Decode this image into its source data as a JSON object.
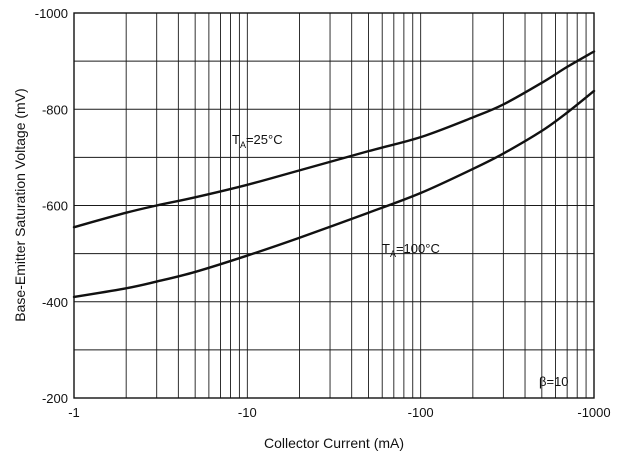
{
  "chart_data": {
    "type": "line",
    "xlabel": "Collector Current (mA)",
    "ylabel": "Base-Emitter Saturation Voltage (mV)",
    "x_scale": "log",
    "xlim": [
      1,
      1000
    ],
    "ylim": [
      -200,
      -1000
    ],
    "x_ticks": [
      1,
      10,
      100,
      1000
    ],
    "x_tick_labels": [
      "-1",
      "-10",
      "-100",
      "-1000"
    ],
    "y_ticks": [
      -200,
      -400,
      -600,
      -800,
      -1000
    ],
    "y_tick_labels": [
      "-200",
      "-400",
      "-600",
      "-800",
      "-1000"
    ],
    "grid": true,
    "series": [
      {
        "name": "T_A=25°C",
        "label_main": "T",
        "label_sub": "A",
        "label_rest": "=25°C",
        "x": [
          1,
          2,
          3,
          5,
          10,
          20,
          50,
          100,
          200,
          300,
          500,
          700,
          1000
        ],
        "y": [
          -555,
          -585,
          -600,
          -617,
          -643,
          -673,
          -713,
          -742,
          -783,
          -810,
          -855,
          -888,
          -920
        ]
      },
      {
        "name": "T_A=100°C",
        "label_main": "T",
        "label_sub": "A",
        "label_rest": "=100°C",
        "x": [
          1,
          2,
          3,
          5,
          10,
          20,
          50,
          100,
          200,
          300,
          500,
          700,
          1000
        ],
        "y": [
          -410,
          -428,
          -442,
          -462,
          -496,
          -533,
          -585,
          -626,
          -676,
          -708,
          -755,
          -793,
          -838
        ]
      }
    ],
    "annotations": [
      {
        "text": "β=10"
      }
    ]
  }
}
